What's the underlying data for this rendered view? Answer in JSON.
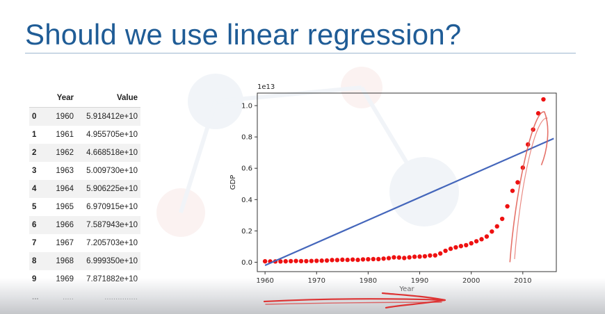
{
  "slide": {
    "title": "Should we use linear regression?"
  },
  "table": {
    "headers": [
      "",
      "Year",
      "Value"
    ],
    "rows": [
      [
        "0",
        "1960",
        "5.918412e+10"
      ],
      [
        "1",
        "1961",
        "4.955705e+10"
      ],
      [
        "2",
        "1962",
        "4.668518e+10"
      ],
      [
        "3",
        "1963",
        "5.009730e+10"
      ],
      [
        "4",
        "1964",
        "5.906225e+10"
      ],
      [
        "5",
        "1965",
        "6.970915e+10"
      ],
      [
        "6",
        "1966",
        "7.587943e+10"
      ],
      [
        "7",
        "1967",
        "7.205703e+10"
      ],
      [
        "8",
        "1968",
        "6.999350e+10"
      ],
      [
        "9",
        "1969",
        "7.871882e+10"
      ]
    ],
    "ellipsis": [
      "...",
      ".....",
      "..............."
    ]
  },
  "chart_data": {
    "type": "scatter",
    "title": "",
    "xlabel": "Year",
    "ylabel": "GDP",
    "offset_label": "1e13",
    "xlim": [
      1958.5,
      2016.5
    ],
    "ylim": [
      -0.06,
      1.08
    ],
    "x_ticks": [
      1960,
      1970,
      1980,
      1990,
      2000,
      2010
    ],
    "y_ticks": [
      0.0,
      0.2,
      0.4,
      0.6,
      0.8,
      1.0
    ],
    "y_tick_labels": [
      "0.0",
      "0.2",
      "0.4",
      "0.6",
      "0.8",
      "1.0"
    ],
    "grid": false,
    "colors": {
      "points": "#ee1111",
      "fit_line": "#4466bb",
      "annotation": "#e0584e"
    },
    "series": [
      {
        "x": [
          1960,
          1961,
          1962,
          1963,
          1964,
          1965,
          1966,
          1967,
          1968,
          1969,
          1970,
          1971,
          1972,
          1973,
          1974,
          1975,
          1976,
          1977,
          1978,
          1979,
          1980,
          1981,
          1982,
          1983,
          1984,
          1985,
          1986,
          1987,
          1988,
          1989,
          1990,
          1991,
          1992,
          1993,
          1994,
          1995,
          1996,
          1997,
          1998,
          1999,
          2000,
          2001,
          2002,
          2003,
          2004,
          2005,
          2006,
          2007,
          2008,
          2009,
          2010,
          2011,
          2012,
          2013,
          2014
        ],
        "y": [
          0.006,
          0.005,
          0.005,
          0.005,
          0.006,
          0.007,
          0.008,
          0.007,
          0.007,
          0.008,
          0.009,
          0.01,
          0.011,
          0.014,
          0.014,
          0.016,
          0.015,
          0.017,
          0.015,
          0.018,
          0.019,
          0.02,
          0.02,
          0.023,
          0.026,
          0.031,
          0.03,
          0.027,
          0.031,
          0.035,
          0.036,
          0.038,
          0.043,
          0.044,
          0.056,
          0.073,
          0.086,
          0.095,
          0.103,
          0.109,
          0.121,
          0.134,
          0.147,
          0.164,
          0.196,
          0.229,
          0.277,
          0.357,
          0.456,
          0.51,
          0.604,
          0.752,
          0.847,
          0.951,
          1.04
        ]
      }
    ],
    "fit_line": {
      "x": [
        1960,
        2016
      ],
      "y": [
        -0.02,
        0.79
      ]
    }
  }
}
